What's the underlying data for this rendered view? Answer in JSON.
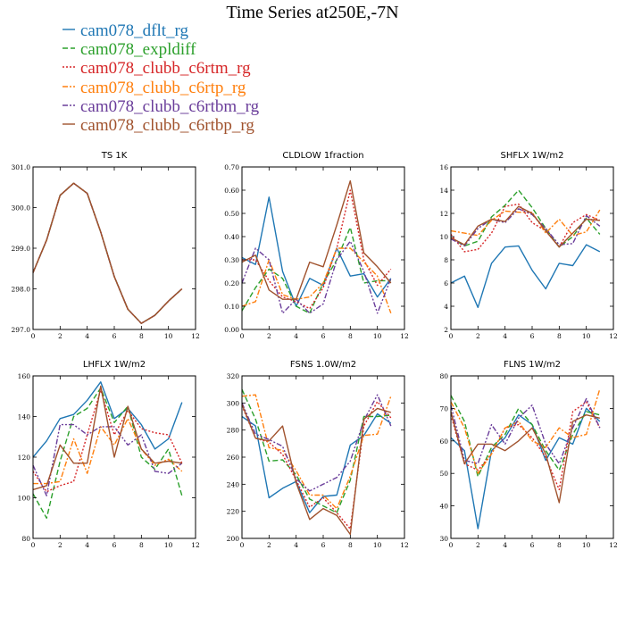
{
  "title": "Time Series at250E,-7N",
  "series_styles": [
    {
      "name": "cam078_dflt_rg",
      "color": "#1f77b4",
      "dash": ""
    },
    {
      "name": "cam078_expldiff",
      "color": "#2ca02c",
      "dash": "6,3"
    },
    {
      "name": "cam078_clubb_c6rtm_rg",
      "color": "#d62728",
      "dash": "2,2"
    },
    {
      "name": "cam078_clubb_c6rtp_rg",
      "color": "#ff7f0e",
      "dash": "6,2,2,2"
    },
    {
      "name": "cam078_clubb_c6rtbm_rg",
      "color": "#6a3d9a",
      "dash": "6,2,2,2,2,2"
    },
    {
      "name": "cam078_clubb_c6rtbp_rg",
      "color": "#a0522d",
      "dash": ""
    }
  ],
  "chart_data": [
    {
      "type": "line",
      "title": "TS   1K",
      "x": [
        0,
        1,
        2,
        3,
        4,
        5,
        6,
        7,
        8,
        9,
        10,
        11
      ],
      "xlim": [
        0,
        12
      ],
      "xticks": [
        0,
        2,
        4,
        6,
        8,
        10,
        12
      ],
      "ylim": [
        297,
        301
      ],
      "yticks": [
        297.0,
        298.0,
        299.0,
        300.0,
        301.0
      ],
      "ytick_labels": [
        "297.0",
        "298.0",
        "299.0",
        "300.0",
        "301.0"
      ],
      "series": [
        {
          "name": "cam078_dflt_rg",
          "values": [
            298.4,
            299.2,
            300.3,
            300.6,
            300.35,
            299.4,
            298.3,
            297.5,
            297.15,
            297.35,
            297.7,
            298.0
          ]
        },
        {
          "name": "cam078_expldiff",
          "values": [
            298.4,
            299.2,
            300.3,
            300.6,
            300.35,
            299.4,
            298.3,
            297.5,
            297.15,
            297.35,
            297.7,
            298.0
          ]
        },
        {
          "name": "cam078_clubb_c6rtm_rg",
          "values": [
            298.4,
            299.2,
            300.3,
            300.6,
            300.35,
            299.4,
            298.3,
            297.5,
            297.15,
            297.35,
            297.7,
            298.0
          ]
        },
        {
          "name": "cam078_clubb_c6rtp_rg",
          "values": [
            298.4,
            299.2,
            300.3,
            300.6,
            300.35,
            299.4,
            298.3,
            297.5,
            297.15,
            297.35,
            297.7,
            298.0
          ]
        },
        {
          "name": "cam078_clubb_c6rtbm_rg",
          "values": [
            298.4,
            299.2,
            300.3,
            300.6,
            300.35,
            299.4,
            298.3,
            297.5,
            297.15,
            297.35,
            297.7,
            298.0
          ]
        },
        {
          "name": "cam078_clubb_c6rtbp_rg",
          "values": [
            298.4,
            299.2,
            300.3,
            300.6,
            300.35,
            299.4,
            298.3,
            297.5,
            297.15,
            297.35,
            297.7,
            298.0
          ]
        }
      ]
    },
    {
      "type": "line",
      "title": "CLDLOW   1fraction",
      "x": [
        0,
        1,
        2,
        3,
        4,
        5,
        6,
        7,
        8,
        9,
        10,
        11
      ],
      "xlim": [
        0,
        12
      ],
      "xticks": [
        0,
        2,
        4,
        6,
        8,
        10,
        12
      ],
      "ylim": [
        0,
        0.7
      ],
      "yticks": [
        0,
        0.1,
        0.2,
        0.3,
        0.4,
        0.5,
        0.6,
        0.7
      ],
      "ytick_labels": [
        "0.00",
        "0.10",
        "0.20",
        "0.30",
        "0.40",
        "0.50",
        "0.60",
        "0.70"
      ],
      "series": [
        {
          "name": "cam078_dflt_rg",
          "values": [
            0.31,
            0.28,
            0.57,
            0.25,
            0.1,
            0.22,
            0.19,
            0.35,
            0.23,
            0.24,
            0.14,
            0.22
          ]
        },
        {
          "name": "cam078_expldiff",
          "values": [
            0.08,
            0.18,
            0.26,
            0.22,
            0.1,
            0.07,
            0.2,
            0.3,
            0.44,
            0.2,
            0.21,
            0.21
          ]
        },
        {
          "name": "cam078_clubb_c6rtm_rg",
          "values": [
            0.3,
            0.3,
            0.21,
            0.14,
            0.12,
            0.09,
            0.18,
            0.35,
            0.6,
            0.3,
            0.19,
            0.26
          ]
        },
        {
          "name": "cam078_clubb_c6rtp_rg",
          "values": [
            0.1,
            0.12,
            0.3,
            0.15,
            0.13,
            0.14,
            0.2,
            0.35,
            0.35,
            0.29,
            0.23,
            0.07
          ]
        },
        {
          "name": "cam078_clubb_c6rtbm_rg",
          "values": [
            0.2,
            0.35,
            0.3,
            0.07,
            0.13,
            0.07,
            0.11,
            0.3,
            0.38,
            0.25,
            0.07,
            0.22
          ]
        },
        {
          "name": "cam078_clubb_c6rtbp_rg",
          "values": [
            0.29,
            0.32,
            0.17,
            0.13,
            0.13,
            0.29,
            0.27,
            0.45,
            0.64,
            0.33,
            0.27,
            0.2
          ]
        }
      ]
    },
    {
      "type": "line",
      "title": "SHFLX   1W/m2",
      "x": [
        0,
        1,
        2,
        3,
        4,
        5,
        6,
        7,
        8,
        9,
        10,
        11
      ],
      "xlim": [
        0,
        12
      ],
      "xticks": [
        0,
        2,
        4,
        6,
        8,
        10,
        12
      ],
      "ylim": [
        2,
        16
      ],
      "yticks": [
        2,
        4,
        6,
        8,
        10,
        12,
        14,
        16
      ],
      "ytick_labels": [
        "2",
        "4",
        "6",
        "8",
        "10",
        "12",
        "14",
        "16"
      ],
      "series": [
        {
          "name": "cam078_dflt_rg",
          "values": [
            6.0,
            6.6,
            3.9,
            7.7,
            9.1,
            9.2,
            7.1,
            5.5,
            7.7,
            7.5,
            9.3,
            8.7
          ]
        },
        {
          "name": "cam078_expldiff",
          "values": [
            9.9,
            9.2,
            9.6,
            11.7,
            12.7,
            14.0,
            12.5,
            10.7,
            9.1,
            10.0,
            11.6,
            10.2
          ]
        },
        {
          "name": "cam078_clubb_c6rtm_rg",
          "values": [
            10.2,
            8.7,
            8.9,
            10.3,
            12.6,
            12.8,
            11.2,
            10.5,
            9.1,
            11.2,
            11.9,
            11.4
          ]
        },
        {
          "name": "cam078_clubb_c6rtp_rg",
          "values": [
            10.5,
            10.3,
            10.1,
            11.4,
            12.2,
            12.1,
            12.1,
            10.3,
            11.5,
            10.1,
            10.4,
            12.3
          ]
        },
        {
          "name": "cam078_clubb_c6rtbm_rg",
          "values": [
            9.8,
            9.2,
            10.7,
            11.5,
            11.2,
            12.4,
            11.9,
            10.7,
            9.3,
            9.4,
            11.8,
            10.9
          ]
        },
        {
          "name": "cam078_clubb_c6rtbp_rg",
          "values": [
            9.9,
            9.3,
            10.9,
            11.5,
            11.3,
            12.6,
            12.0,
            10.5,
            9.1,
            10.3,
            11.5,
            11.4
          ]
        }
      ]
    },
    {
      "type": "line",
      "title": "LHFLX   1W/m2",
      "x": [
        0,
        1,
        2,
        3,
        4,
        5,
        6,
        7,
        8,
        9,
        10,
        11
      ],
      "xlim": [
        0,
        12
      ],
      "xticks": [
        0,
        2,
        4,
        6,
        8,
        10,
        12
      ],
      "ylim": [
        80,
        160
      ],
      "yticks": [
        80,
        100,
        120,
        140,
        160
      ],
      "ytick_labels": [
        "80",
        "100",
        "120",
        "140",
        "160"
      ],
      "series": [
        {
          "name": "cam078_dflt_rg",
          "values": [
            120,
            128,
            139,
            141,
            148,
            157,
            139,
            144,
            136,
            124,
            129,
            147
          ]
        },
        {
          "name": "cam078_expldiff",
          "values": [
            102,
            90,
            118,
            140,
            144,
            154,
            137,
            145,
            120,
            114,
            124,
            101
          ]
        },
        {
          "name": "cam078_clubb_c6rtm_rg",
          "values": [
            113,
            103,
            106,
            108,
            131,
            153,
            131,
            143,
            134,
            132,
            131,
            117
          ]
        },
        {
          "name": "cam078_clubb_c6rtp_rg",
          "values": [
            107,
            107,
            108,
            129,
            112,
            135,
            126,
            139,
            124,
            116,
            119,
            113
          ]
        },
        {
          "name": "cam078_clubb_c6rtbm_rg",
          "values": [
            116,
            101,
            136,
            136,
            131,
            135,
            135,
            126,
            131,
            113,
            112,
            117
          ]
        },
        {
          "name": "cam078_clubb_c6rtbp_rg",
          "values": [
            104,
            106,
            126,
            117,
            117,
            155,
            120,
            145,
            124,
            117,
            118,
            117
          ]
        }
      ]
    },
    {
      "type": "line",
      "title": "FSNS   1.0W/m2",
      "x": [
        0,
        1,
        2,
        3,
        4,
        5,
        6,
        7,
        8,
        9,
        10,
        11
      ],
      "xlim": [
        0,
        12
      ],
      "xticks": [
        0,
        2,
        4,
        6,
        8,
        10,
        12
      ],
      "ylim": [
        200,
        320
      ],
      "yticks": [
        200,
        220,
        240,
        260,
        280,
        300,
        320
      ],
      "ytick_labels": [
        "200",
        "220",
        "240",
        "260",
        "280",
        "300",
        "320"
      ],
      "series": [
        {
          "name": "cam078_dflt_rg",
          "values": [
            290,
            283,
            230,
            237,
            242,
            219,
            231,
            232,
            269,
            276,
            292,
            285
          ]
        },
        {
          "name": "cam078_expldiff",
          "values": [
            310,
            288,
            257,
            258,
            247,
            229,
            224,
            219,
            243,
            290,
            290,
            291
          ]
        },
        {
          "name": "cam078_clubb_c6rtm_rg",
          "values": [
            298,
            274,
            271,
            262,
            243,
            223,
            230,
            219,
            207,
            283,
            301,
            289
          ]
        },
        {
          "name": "cam078_clubb_c6rtp_rg",
          "values": [
            305,
            306,
            267,
            265,
            250,
            232,
            232,
            222,
            246,
            276,
            277,
            305
          ]
        },
        {
          "name": "cam078_clubb_c6rtbm_rg",
          "values": [
            300,
            277,
            273,
            268,
            244,
            235,
            240,
            245,
            257,
            287,
            306,
            283
          ]
        },
        {
          "name": "cam078_clubb_c6rtbp_rg",
          "values": [
            299,
            274,
            272,
            283,
            241,
            214,
            222,
            217,
            203,
            288,
            296,
            293
          ]
        }
      ]
    },
    {
      "type": "line",
      "title": "FLNS   1W/m2",
      "x": [
        0,
        1,
        2,
        3,
        4,
        5,
        6,
        7,
        8,
        9,
        10,
        11
      ],
      "xlim": [
        0,
        12
      ],
      "xticks": [
        0,
        2,
        4,
        6,
        8,
        10,
        12
      ],
      "ylim": [
        30,
        80
      ],
      "yticks": [
        30,
        40,
        50,
        60,
        70,
        80
      ],
      "ytick_labels": [
        "30",
        "40",
        "50",
        "60",
        "70",
        "80"
      ],
      "series": [
        {
          "name": "cam078_dflt_rg",
          "values": [
            61,
            57,
            33,
            57,
            61,
            68,
            65,
            54,
            61,
            59,
            70,
            66
          ]
        },
        {
          "name": "cam078_expldiff",
          "values": [
            74,
            66,
            49,
            58,
            62,
            70,
            65,
            57,
            51,
            62,
            69,
            68
          ]
        },
        {
          "name": "cam078_clubb_c6rtm_rg",
          "values": [
            68,
            53,
            51,
            56,
            64,
            65,
            61,
            55,
            45,
            69,
            72,
            64
          ]
        },
        {
          "name": "cam078_clubb_c6rtp_rg",
          "values": [
            72,
            64,
            50,
            56,
            64,
            66,
            60,
            58,
            64,
            61,
            62,
            76
          ]
        },
        {
          "name": "cam078_clubb_c6rtbm_rg",
          "values": [
            71,
            54,
            53,
            65,
            59,
            67,
            71,
            59,
            53,
            64,
            73,
            64
          ]
        },
        {
          "name": "cam078_clubb_c6rtbp_rg",
          "values": [
            69,
            53,
            59,
            59,
            57,
            60,
            64,
            56,
            41,
            66,
            68,
            67
          ]
        }
      ]
    }
  ]
}
